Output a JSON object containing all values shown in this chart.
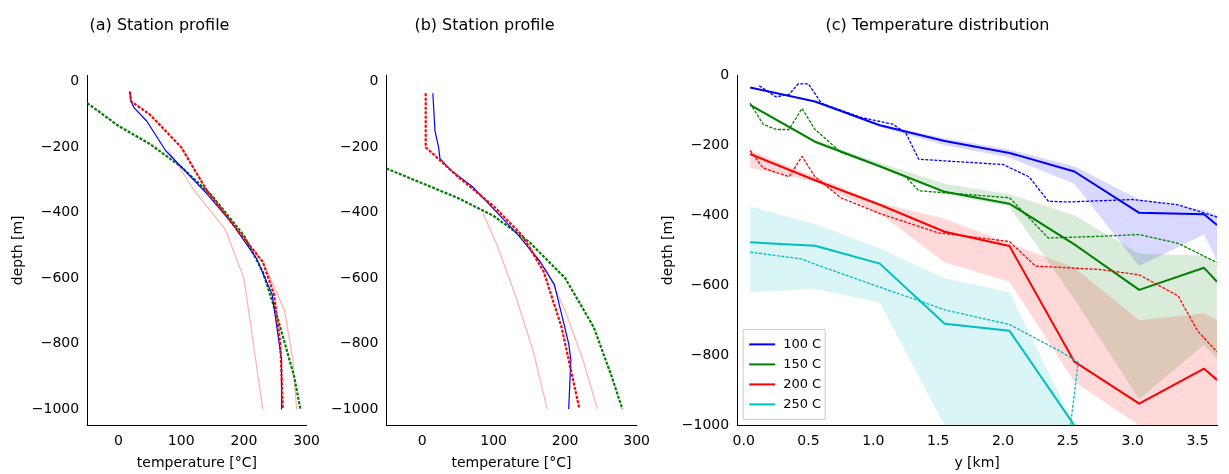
{
  "chart_data": [
    {
      "type": "line",
      "title": "(a) Station profile",
      "xlabel": "temperature [°C]",
      "ylabel": "depth [m]",
      "xlim": [
        -50,
        300
      ],
      "ylim": [
        -1050,
        20
      ],
      "xticks": [
        0,
        100,
        200,
        300
      ],
      "yticks": [
        0,
        -200,
        -400,
        -600,
        -800,
        -1000
      ],
      "grid": false,
      "legend": false,
      "series": [
        {
          "color": "#ffb0b0",
          "line_style": "solid",
          "x": [
            80,
            120,
            170,
            200,
            215,
            230
          ],
          "values": [
            -210,
            -330,
            -450,
            -600,
            -800,
            -1000
          ]
        },
        {
          "color": "#ffb0b0",
          "line_style": "solid",
          "x": [
            100,
            140,
            180,
            230,
            265,
            278,
            284
          ],
          "values": [
            -200,
            -330,
            -430,
            -550,
            -700,
            -850,
            -1000
          ]
        },
        {
          "color": "#008000",
          "line_style": "dashed",
          "x": [
            -50,
            0,
            50,
            100,
            150,
            200,
            230,
            255,
            280,
            290
          ],
          "values": [
            -65,
            -135,
            -190,
            -260,
            -350,
            -470,
            -580,
            -730,
            -900,
            -1000
          ]
        },
        {
          "color": "#0000ff",
          "line_style": "solid",
          "x": [
            18,
            20,
            25,
            45,
            75,
            140,
            180,
            220,
            245,
            260,
            260
          ],
          "values": [
            -30,
            -60,
            -80,
            -120,
            -210,
            -340,
            -430,
            -540,
            -650,
            -850,
            -1000
          ]
        },
        {
          "color": "#ff0000",
          "line_style": "dashed",
          "x": [
            18,
            20,
            50,
            100,
            140,
            180,
            230,
            248,
            258,
            262
          ],
          "values": [
            -30,
            -60,
            -100,
            -200,
            -330,
            -430,
            -550,
            -650,
            -800,
            -1000
          ]
        }
      ]
    },
    {
      "type": "line",
      "title": "(b) Station profile",
      "xlabel": "temperature [°C]",
      "xlim": [
        -50,
        300
      ],
      "ylim": [
        -1050,
        20
      ],
      "xticks": [
        0,
        100,
        200,
        300
      ],
      "yticks": [
        0,
        -200,
        -400,
        -600,
        -800,
        -1000
      ],
      "grid": false,
      "legend": false,
      "series": [
        {
          "color": "#ffb0b0",
          "line_style": "solid",
          "x": [
            85,
            105,
            130,
            155,
            175
          ],
          "values": [
            -400,
            -500,
            -650,
            -820,
            -1000
          ]
        },
        {
          "color": "#ffb0b0",
          "line_style": "solid",
          "x": [
            140,
            175,
            200,
            225,
            245
          ],
          "values": [
            -470,
            -580,
            -700,
            -850,
            -1000
          ]
        },
        {
          "color": "#008000",
          "line_style": "dashed",
          "x": [
            -50,
            0,
            50,
            100,
            150,
            200,
            240,
            265,
            280
          ],
          "values": [
            -265,
            -310,
            -355,
            -410,
            -490,
            -600,
            -750,
            -900,
            -1000
          ]
        },
        {
          "color": "#0000ff",
          "line_style": "solid",
          "x": [
            15,
            18,
            23,
            25,
            40,
            70,
            105,
            135,
            165,
            185,
            205,
            208,
            205
          ],
          "values": [
            -35,
            -150,
            -200,
            -235,
            -270,
            -320,
            -400,
            -470,
            -550,
            -620,
            -800,
            -850,
            -1000
          ]
        },
        {
          "color": "#ff0000",
          "line_style": "dashed",
          "x": [
            5,
            5,
            20,
            50,
            100,
            140,
            170,
            195,
            210,
            220
          ],
          "values": [
            -35,
            -200,
            -230,
            -290,
            -380,
            -470,
            -580,
            -750,
            -900,
            -1000
          ]
        }
      ]
    },
    {
      "type": "line",
      "title": "(c) Temperature distribution",
      "xlabel": "y [km]",
      "ylabel": "depth [m]",
      "xlim": [
        -0.05,
        3.65
      ],
      "ylim": [
        -1000,
        0
      ],
      "xticks": [
        {
          "value": 0,
          "label": "0.0"
        },
        0.5,
        {
          "value": 1,
          "label": "1.0"
        },
        1.5,
        {
          "value": 2,
          "label": "2.0"
        },
        2.5,
        {
          "value": 3,
          "label": "3.0"
        },
        3.5
      ],
      "yticks": [
        0,
        -200,
        -400,
        -600,
        -800,
        -1000
      ],
      "grid": false,
      "legend": "bottom left",
      "series": [
        {
          "name": "100 C",
          "color": "#0000ff",
          "line_style": "solid",
          "x": [
            0.05,
            0.55,
            1.05,
            1.55,
            2.05,
            2.55,
            3.05,
            3.55,
            3.65
          ],
          "values": [
            -35,
            -75,
            -143,
            -188,
            -222,
            -275,
            -393,
            -397,
            -428
          ],
          "upper": [
            -35,
            -75,
            -140,
            -180,
            -212,
            -260,
            -355,
            -385,
            -400
          ],
          "lower": [
            -35,
            -75,
            -148,
            -200,
            -235,
            -310,
            -545,
            -455,
            -530
          ]
        },
        {
          "name": "150 C",
          "color": "#008000",
          "line_style": "solid",
          "x": [
            0.05,
            0.55,
            1.05,
            1.55,
            2.05,
            2.55,
            3.05,
            3.55,
            3.65
          ],
          "values": [
            -85,
            -190,
            -260,
            -333,
            -367,
            -483,
            -613,
            -550,
            -590
          ],
          "upper": [
            -80,
            -185,
            -250,
            -310,
            -340,
            -400,
            -510,
            -515,
            -540
          ],
          "lower": [
            -90,
            -195,
            -265,
            -340,
            -375,
            -640,
            -925,
            -770,
            -810
          ]
        },
        {
          "name": "200 C",
          "color": "#ff0000",
          "line_style": "solid",
          "x": [
            0.05,
            0.55,
            1.05,
            1.55,
            2.05,
            2.55,
            3.05,
            3.55,
            3.65
          ],
          "values": [
            -225,
            -300,
            -370,
            -447,
            -488,
            -818,
            -938,
            -838,
            -870
          ],
          "upper": [
            -215,
            -290,
            -365,
            -410,
            -480,
            -550,
            -700,
            -680,
            -700
          ],
          "lower": [
            -265,
            -305,
            -395,
            -535,
            -590,
            -875,
            -1000,
            -1000,
            -1000
          ]
        },
        {
          "name": "250 C",
          "color": "#00bfbf",
          "line_style": "solid",
          "x": [
            0.05,
            0.55,
            1.05,
            1.55,
            2.05,
            2.55
          ],
          "values": [
            -477,
            -487,
            -538,
            -710,
            -730,
            -1000
          ],
          "upper": [
            -375,
            -425,
            -495,
            -580,
            -620,
            -1000
          ],
          "lower": [
            -620,
            -610,
            -650,
            -1000,
            -1000,
            -1000
          ]
        },
        {
          "color": "#0000ff",
          "line_style": "dashed",
          "x": [
            0.12,
            0.25,
            0.35,
            0.42,
            0.5,
            0.6,
            0.9,
            1.15,
            1.25,
            1.35,
            2.0,
            2.2,
            2.35,
            2.5,
            3.0,
            3.35,
            3.65
          ],
          "values": [
            -30,
            -62,
            -55,
            -25,
            -25,
            -80,
            -120,
            -140,
            -165,
            -240,
            -255,
            -290,
            -360,
            -362,
            -355,
            -370,
            -405
          ]
        },
        {
          "color": "#008000",
          "line_style": "dashed",
          "x": [
            0.05,
            0.15,
            0.25,
            0.35,
            0.45,
            0.55,
            0.75,
            1.05,
            1.25,
            1.35,
            2.05,
            2.35,
            2.75,
            3.05,
            3.35,
            3.65
          ],
          "values": [
            -80,
            -140,
            -155,
            -155,
            -95,
            -155,
            -220,
            -260,
            -290,
            -330,
            -350,
            -465,
            -460,
            -455,
            -480,
            -535
          ]
        },
        {
          "color": "#ff0000",
          "line_style": "dashed",
          "x": [
            0.05,
            0.15,
            0.35,
            0.45,
            0.55,
            0.75,
            1.05,
            1.5,
            2.05,
            2.25,
            2.75,
            3.05,
            3.35,
            3.5,
            3.65
          ],
          "values": [
            -215,
            -265,
            -290,
            -232,
            -290,
            -350,
            -395,
            -450,
            -475,
            -545,
            -555,
            -570,
            -630,
            -730,
            -790
          ]
        },
        {
          "color": "#00bfbf",
          "line_style": "dashed",
          "x": [
            0.05,
            0.45,
            0.55,
            1.05,
            1.55,
            2.05,
            2.45,
            2.58,
            2.52
          ],
          "values": [
            -505,
            -525,
            -540,
            -605,
            -670,
            -712,
            -790,
            -820,
            -1000
          ]
        }
      ]
    }
  ]
}
